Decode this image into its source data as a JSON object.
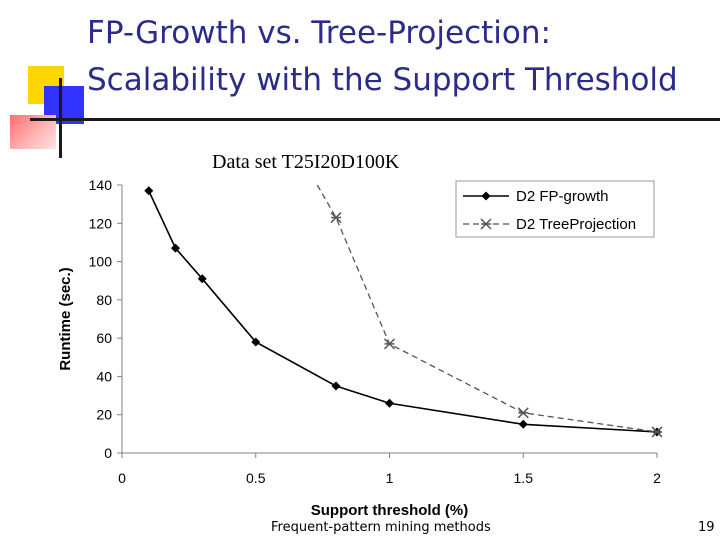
{
  "slide": {
    "title_line1": "FP-Growth vs. Tree-Projection:",
    "title_line2": "Scalability with the Support Threshold",
    "footer": "Frequent-pattern mining methods",
    "page_number": "19",
    "accent_colors": {
      "title": "#2b2b8a",
      "yellow": "#ffd700",
      "blue": "#3333ff",
      "pink": "#ff6f6f"
    }
  },
  "chart_data": {
    "type": "line",
    "title": "Data set T25I20D100K",
    "xlabel": "Support threshold (%)",
    "ylabel": "Runtime (sec.)",
    "xlim": [
      0,
      2
    ],
    "ylim": [
      0,
      140
    ],
    "xticks": [
      0,
      0.5,
      1,
      1.5,
      2
    ],
    "xtick_labels": [
      "0",
      "0.5",
      "1",
      "1.5",
      "2"
    ],
    "yticks": [
      0,
      20,
      40,
      60,
      80,
      100,
      120,
      140
    ],
    "ytick_labels": [
      "0",
      "20",
      "40",
      "60",
      "80",
      "100",
      "120",
      "140"
    ],
    "grid": false,
    "legend_position": "top-right",
    "series": [
      {
        "name": "D2 FP-growth",
        "color": "#000000",
        "style": "solid",
        "marker": "diamond",
        "x": [
          0.1,
          0.2,
          0.3,
          0.5,
          0.8,
          1.0,
          1.5,
          2.0
        ],
        "y": [
          137,
          107,
          91,
          58,
          35,
          26,
          15,
          11
        ]
      },
      {
        "name": "D2 TreeProjection",
        "color": "#555555",
        "style": "dashed",
        "marker": "star",
        "x": [
          0.8,
          1.0,
          1.5,
          2.0
        ],
        "y": [
          123,
          57,
          21,
          11
        ],
        "offscale_start": {
          "x": 0.73,
          "y": 140
        }
      }
    ]
  }
}
